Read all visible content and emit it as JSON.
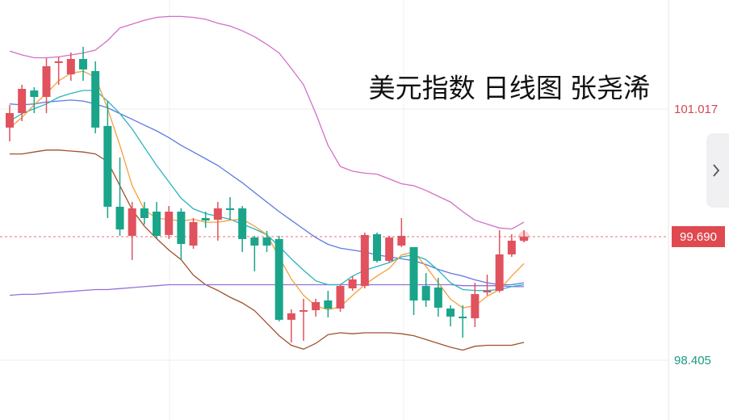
{
  "chart_data": {
    "type": "candlestick",
    "title": "美元指数 日线图 张尧浠",
    "up_color": "#e0525e",
    "down_color": "#1aa58a",
    "open": [
      100.824,
      100.975,
      101.21,
      101.143,
      101.496,
      101.378,
      101.538,
      101.412,
      100.841,
      100.001,
      99.698,
      99.984,
      99.95,
      99.707,
      99.95,
      99.597,
      99.883,
      99.866,
      99.984,
      99.984,
      99.681,
      99.681,
      99.665,
      98.825,
      98.909,
      98.925,
      99.026,
      98.942,
      99.152,
      99.177,
      99.715,
      99.438,
      99.597,
      99.581,
      99.177,
      99.161,
      98.942,
      98.858,
      98.841,
      99.11,
      99.127,
      99.505,
      99.648
    ],
    "high": [
      101.059,
      101.269,
      101.244,
      101.546,
      101.563,
      101.605,
      101.664,
      101.513,
      101.101,
      100.513,
      100.051,
      100.051,
      100.051,
      100.009,
      99.984,
      99.883,
      99.95,
      100.051,
      100.101,
      100.009,
      99.698,
      99.749,
      99.698,
      98.934,
      99.043,
      99.043,
      99.127,
      99.194,
      99.278,
      99.732,
      99.732,
      99.698,
      99.883,
      99.581,
      99.312,
      99.261,
      98.976,
      98.976,
      99.211,
      99.295,
      99.757,
      99.715,
      99.757
    ],
    "low": [
      100.681,
      100.891,
      100.975,
      100.975,
      101.269,
      101.311,
      101.311,
      100.765,
      99.883,
      99.698,
      99.446,
      99.816,
      99.665,
      99.665,
      99.446,
      99.564,
      99.782,
      99.648,
      99.866,
      99.53,
      99.329,
      99.53,
      98.808,
      98.589,
      98.606,
      98.858,
      98.85,
      98.909,
      99.127,
      99.152,
      99.421,
      99.421,
      99.581,
      98.875,
      98.959,
      98.858,
      98.757,
      98.64,
      98.749,
      99.077,
      99.11,
      99.48,
      99.631
    ],
    "close": [
      100.975,
      101.227,
      101.143,
      101.462,
      101.513,
      101.538,
      101.429,
      100.824,
      100.001,
      99.765,
      99.984,
      99.883,
      99.698,
      99.95,
      99.614,
      99.841,
      99.858,
      99.984,
      99.967,
      99.665,
      99.597,
      99.597,
      98.825,
      98.892,
      98.925,
      99.009,
      98.942,
      99.177,
      99.245,
      99.707,
      99.438,
      99.681,
      99.698,
      99.026,
      99.026,
      98.951,
      98.858,
      98.841,
      99.093,
      99.127,
      99.505,
      99.648,
      99.69
    ],
    "series": [
      {
        "color": "#d36fc6",
        "values": [
          101.62,
          101.58,
          101.55,
          101.55,
          101.56,
          101.58,
          101.6,
          101.63,
          101.73,
          101.86,
          101.9,
          101.94,
          101.97,
          101.98,
          101.98,
          101.97,
          101.95,
          101.91,
          101.88,
          101.83,
          101.77,
          101.69,
          101.6,
          101.44,
          101.27,
          100.97,
          100.64,
          100.42,
          100.37,
          100.35,
          100.34,
          100.29,
          100.24,
          100.22,
          100.17,
          100.11,
          100.05,
          99.95,
          99.86,
          99.82,
          99.78,
          99.77,
          99.84
        ]
      },
      {
        "color": "#a0522d",
        "values": [
          100.55,
          100.55,
          100.57,
          100.59,
          100.59,
          100.58,
          100.57,
          100.55,
          100.47,
          100.22,
          99.97,
          99.8,
          99.67,
          99.55,
          99.45,
          99.29,
          99.19,
          99.13,
          99.06,
          99.0,
          98.92,
          98.79,
          98.66,
          98.56,
          98.52,
          98.58,
          98.67,
          98.69,
          98.68,
          98.69,
          98.69,
          98.69,
          98.68,
          98.66,
          98.62,
          98.58,
          98.54,
          98.51,
          98.55,
          98.56,
          98.56,
          98.56,
          98.59
        ]
      },
      {
        "color": "#9370db",
        "values": [
          99.08,
          99.09,
          99.09,
          99.1,
          99.11,
          99.12,
          99.13,
          99.14,
          99.14,
          99.15,
          99.16,
          99.17,
          99.18,
          99.19,
          99.19,
          99.19,
          99.19,
          99.19,
          99.19,
          99.19,
          99.19,
          99.19,
          99.19,
          99.19,
          99.19,
          99.19,
          99.19,
          99.19,
          99.19,
          99.19,
          99.19,
          99.19,
          99.19,
          99.19,
          99.19,
          99.19,
          99.19,
          99.18,
          99.18,
          99.18,
          99.18,
          99.17,
          99.17
        ]
      },
      {
        "color": "#5b7be0",
        "values": [
          101.07,
          101.06,
          101.07,
          101.09,
          101.1,
          101.11,
          101.1,
          101.07,
          101.03,
          100.97,
          100.91,
          100.85,
          100.79,
          100.72,
          100.64,
          100.57,
          100.5,
          100.43,
          100.34,
          100.25,
          100.15,
          100.05,
          99.95,
          99.86,
          99.77,
          99.68,
          99.61,
          99.57,
          99.55,
          99.53,
          99.5,
          99.48,
          99.46,
          99.44,
          99.4,
          99.35,
          99.31,
          99.28,
          99.24,
          99.21,
          99.19,
          99.19,
          99.21
        ]
      },
      {
        "color": "#2bb3c0",
        "values": [
          100.89,
          100.97,
          101.02,
          101.07,
          101.14,
          101.18,
          101.21,
          101.21,
          101.1,
          100.97,
          100.81,
          100.62,
          100.43,
          100.26,
          100.09,
          99.98,
          99.93,
          99.9,
          99.87,
          99.82,
          99.77,
          99.71,
          99.59,
          99.46,
          99.34,
          99.23,
          99.19,
          99.19,
          99.28,
          99.34,
          99.38,
          99.42,
          99.48,
          99.5,
          99.45,
          99.34,
          99.21,
          99.14,
          99.13,
          99.13,
          99.14,
          99.17,
          99.19
        ]
      },
      {
        "color": "#f5a03a",
        "values": [
          100.82,
          100.93,
          101.06,
          101.18,
          101.31,
          101.39,
          101.41,
          101.35,
          101.02,
          100.64,
          100.22,
          99.97,
          99.88,
          99.87,
          99.85,
          99.87,
          99.84,
          99.84,
          99.86,
          99.87,
          99.8,
          99.71,
          99.48,
          99.25,
          99.08,
          98.97,
          98.93,
          98.96,
          99.08,
          99.19,
          99.28,
          99.36,
          99.5,
          99.53,
          99.38,
          99.21,
          99.04,
          98.95,
          98.97,
          99.07,
          99.14,
          99.28,
          99.41
        ]
      }
    ],
    "ylim": [
      97.783,
      102.151
    ],
    "yticks": [
      101.017,
      98.405
    ],
    "last_price": {
      "value": 99.69,
      "label": "99.690"
    },
    "grid": true
  }
}
